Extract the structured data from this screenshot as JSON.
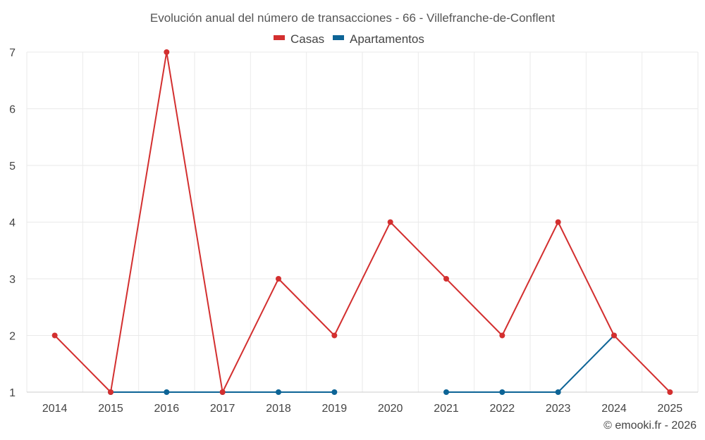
{
  "chart_data": {
    "type": "line",
    "title": "Evolución anual del número de transacciones - 66 - Villefranche-de-Conflent",
    "x": [
      "2014",
      "2015",
      "2016",
      "2017",
      "2018",
      "2019",
      "2020",
      "2021",
      "2022",
      "2023",
      "2024",
      "2025"
    ],
    "series": [
      {
        "name": "Casas",
        "color": "#d32f2f",
        "values": [
          2,
          1,
          7,
          1,
          3,
          2,
          4,
          3,
          2,
          4,
          2,
          1
        ]
      },
      {
        "name": "Apartamentos",
        "color": "#0d6496",
        "values": [
          null,
          1,
          1,
          1,
          1,
          1,
          null,
          1,
          1,
          1,
          2,
          null
        ]
      }
    ],
    "ylim": [
      1,
      7
    ],
    "yticks": [
      "1",
      "2",
      "3",
      "4",
      "5",
      "6",
      "7"
    ],
    "grid": true,
    "legend_position": "top-center",
    "xlabel": "",
    "ylabel": ""
  },
  "credit": "© emooki.fr - 2026"
}
